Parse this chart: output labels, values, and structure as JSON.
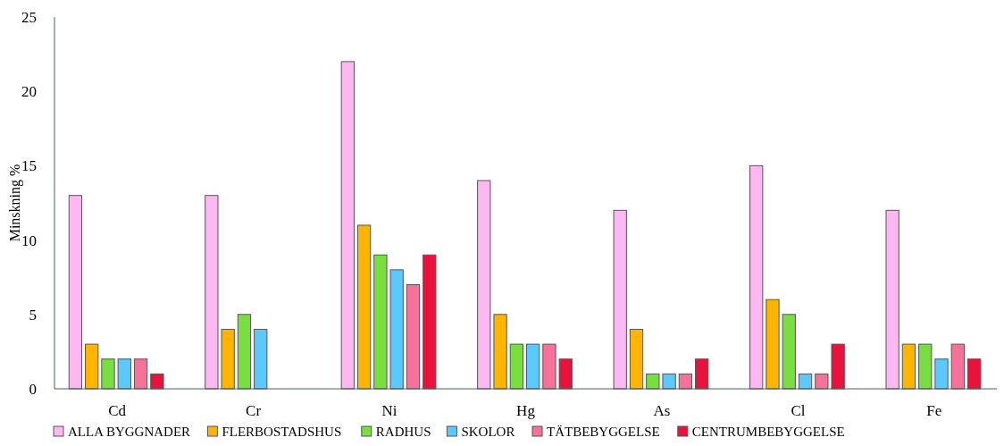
{
  "chart_data": {
    "type": "bar",
    "ylabel": "Minskning %",
    "categories": [
      "Cd",
      "Cr",
      "Ni",
      "Hg",
      "As",
      "Cl",
      "Fe"
    ],
    "series": [
      {
        "name": "ALLA BYGGNADER",
        "color": "#fdb7f1",
        "values": [
          13,
          13,
          22,
          14,
          12,
          15,
          12
        ]
      },
      {
        "name": "FLERBOSTADSHUS",
        "color": "#ffb400",
        "values": [
          3,
          4,
          11,
          5,
          4,
          6,
          3
        ]
      },
      {
        "name": "RADHUS",
        "color": "#79de3f",
        "values": [
          2,
          5,
          9,
          3,
          1,
          5,
          3
        ]
      },
      {
        "name": "SKOLOR",
        "color": "#5cc8fd",
        "values": [
          2,
          4,
          8,
          3,
          1,
          1,
          2
        ]
      },
      {
        "name": "TÄTBEBYGGELSE",
        "color": "#f7729b",
        "values": [
          2,
          null,
          7,
          3,
          1,
          1,
          3
        ]
      },
      {
        "name": "CENTRUMBEBYGGELSE",
        "color": "#e8123d",
        "values": [
          1,
          null,
          9,
          2,
          2,
          3,
          2
        ]
      }
    ],
    "ylim": [
      0,
      25
    ],
    "yticks": [
      0,
      5,
      10,
      15,
      20,
      25
    ],
    "grid": false,
    "legend": "bottom"
  }
}
